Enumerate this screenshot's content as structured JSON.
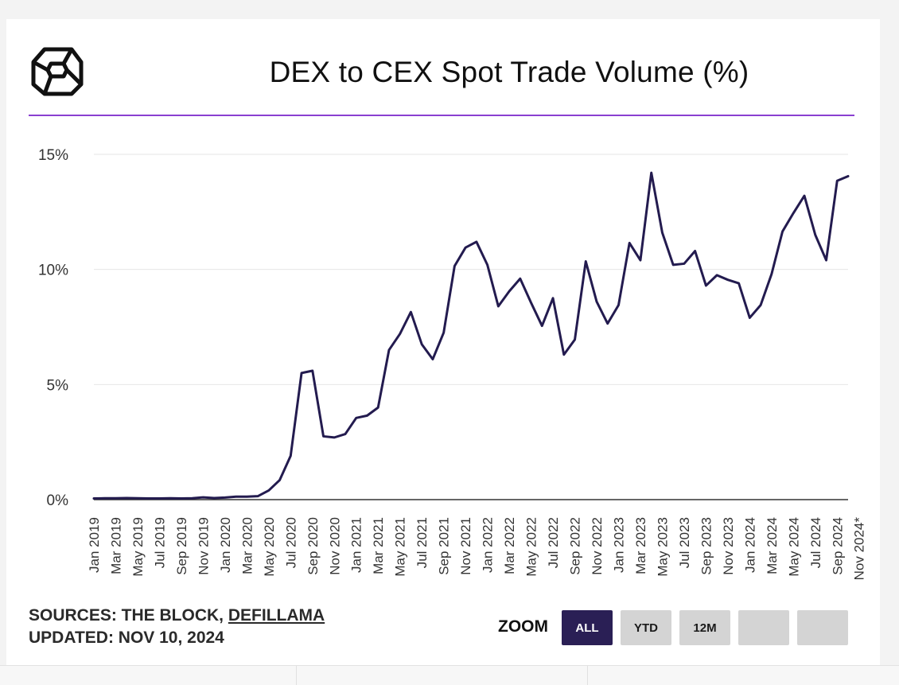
{
  "title": "DEX to CEX Spot Trade Volume (%)",
  "logo_icon": "cube-logo-icon",
  "colors": {
    "line": "#231b4f",
    "accent_rule": "#8a3fd1",
    "active_button": "#2a1f55",
    "grid": "#e6e6e6"
  },
  "footer": {
    "sources_prefix": "SOURCES: THE BLOCK,",
    "sources_link": "DEFILLAMA",
    "updated": "UPDATED: NOV 10, 2024"
  },
  "zoom": {
    "label": "ZOOM",
    "buttons": [
      {
        "label": "ALL",
        "active": true
      },
      {
        "label": "YTD",
        "active": false
      },
      {
        "label": "12M",
        "active": false
      },
      {
        "label": "",
        "active": false
      },
      {
        "label": "",
        "active": false
      }
    ]
  },
  "chart_data": {
    "type": "line",
    "title": "DEX to CEX Spot Trade Volume (%)",
    "xlabel": "",
    "ylabel": "",
    "ylim": [
      0,
      15
    ],
    "y_ticks": [
      0,
      5,
      10,
      15
    ],
    "y_tick_labels": [
      "0%",
      "5%",
      "10%",
      "15%"
    ],
    "grid": true,
    "x_tick_labels": [
      "Jan 2019",
      "Mar 2019",
      "May 2019",
      "Jul 2019",
      "Sep 2019",
      "Nov 2019",
      "Jan 2020",
      "Mar 2020",
      "May 2020",
      "Jul 2020",
      "Sep 2020",
      "Nov 2020",
      "Jan 2021",
      "Mar 2021",
      "May 2021",
      "Jul 2021",
      "Sep 2021",
      "Nov 2021",
      "Jan 2022",
      "Mar 2022",
      "May 2022",
      "Jul 2022",
      "Sep 2022",
      "Nov 2022",
      "Jan 2023",
      "Mar 2023",
      "May 2023",
      "Jul 2023",
      "Sep 2023",
      "Nov 2023",
      "Jan 2024",
      "Mar 2024",
      "May 2024",
      "Jul 2024",
      "Sep 2024",
      "Nov 2024*"
    ],
    "series": [
      {
        "name": "DEX to CEX Spot Trade Volume (%)",
        "values": [
          0.05,
          0.06,
          0.06,
          0.07,
          0.06,
          0.05,
          0.05,
          0.06,
          0.05,
          0.06,
          0.1,
          0.07,
          0.09,
          0.13,
          0.13,
          0.15,
          0.4,
          0.85,
          1.9,
          5.5,
          5.6,
          2.75,
          2.7,
          2.85,
          3.55,
          3.65,
          4.0,
          6.5,
          7.2,
          8.15,
          6.75,
          6.1,
          7.25,
          10.15,
          10.95,
          11.2,
          10.2,
          8.4,
          9.05,
          9.6,
          8.55,
          7.55,
          8.75,
          6.3,
          6.95,
          10.35,
          8.6,
          7.65,
          8.45,
          11.15,
          10.4,
          14.2,
          11.6,
          10.2,
          10.25,
          10.8,
          9.3,
          9.75,
          9.55,
          9.4,
          7.9,
          8.45,
          9.8,
          11.65,
          12.45,
          13.2,
          11.5,
          10.4,
          13.85,
          14.05
        ]
      }
    ]
  }
}
